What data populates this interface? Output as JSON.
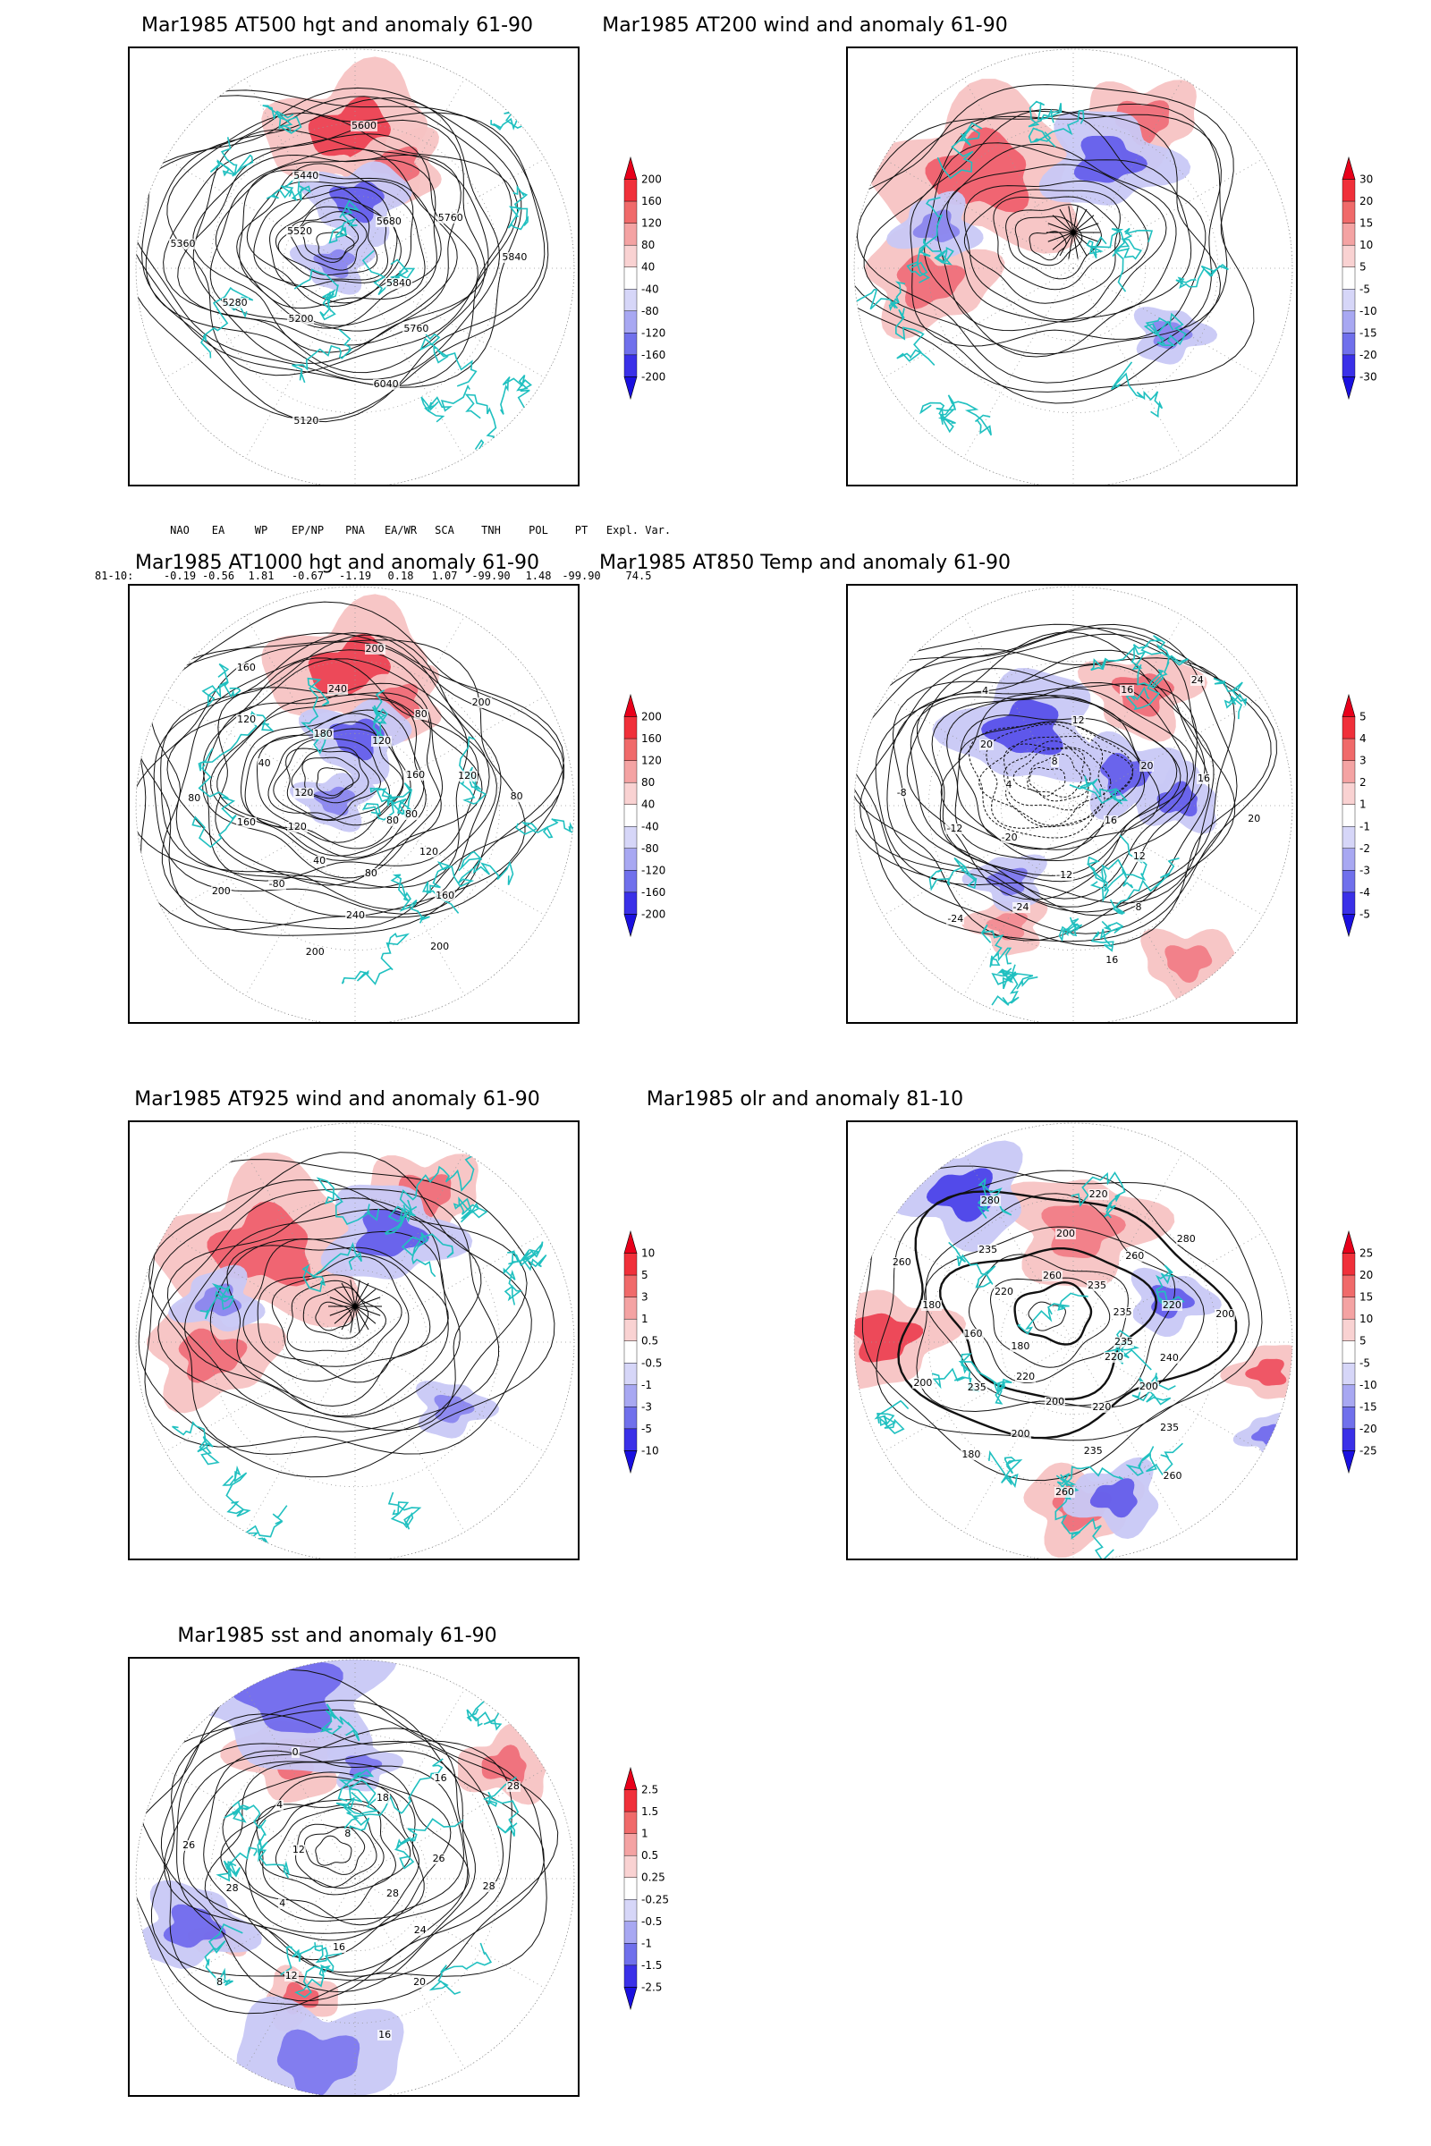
{
  "panels": [
    {
      "id": "p1",
      "title": "Mar1985 AT500 hgt and anomaly 61-90",
      "colorbar": [
        "200",
        "160",
        "120",
        "80",
        "40",
        "-40",
        "-80",
        "-120",
        "-160",
        "-200"
      ],
      "contour_labels": [
        "5840",
        "5760",
        "6040",
        "5120",
        "5200",
        "5280",
        "5360",
        "5520",
        "5440",
        "5600",
        "5680",
        "5760",
        "5840"
      ],
      "style": "hgt"
    },
    {
      "id": "p2",
      "title": "Mar1985 AT200 wind and anomaly 61-90",
      "colorbar": [
        "30",
        "20",
        "15",
        "10",
        "5",
        "-5",
        "-10",
        "-15",
        "-20",
        "-30"
      ],
      "contour_labels": [],
      "style": "wind"
    },
    {
      "id": "p3",
      "title": "Mar1985 AT1000 hgt and anomaly 61-90",
      "colorbar": [
        "200",
        "160",
        "120",
        "80",
        "40",
        "-40",
        "-80",
        "-120",
        "-160",
        "-200"
      ],
      "contour_labels": [
        "80",
        "120",
        "160",
        "200",
        "80",
        "240",
        "200",
        "40",
        "-80",
        "200",
        "120",
        "160",
        "80",
        "120",
        "40",
        "120",
        "160",
        "180",
        "240",
        "200",
        "120",
        "80",
        "200",
        "160",
        "120",
        "80",
        "80"
      ],
      "style": "hgt"
    },
    {
      "id": "p4",
      "title": "Mar1985 AT850 Temp and anomaly 61-90",
      "colorbar": [
        "5",
        "4",
        "3",
        "2",
        "1",
        "-1",
        "-2",
        "-3",
        "-4",
        "-5"
      ],
      "contour_labels": [
        "16",
        "12",
        "8",
        "16",
        "-12",
        "-24",
        "-24",
        "-20",
        "-12",
        "-8",
        "4",
        "20",
        "4",
        "8",
        "12",
        "16",
        "24",
        "20",
        "16",
        "20"
      ],
      "style": "temp"
    },
    {
      "id": "p5",
      "title": "Mar1985 AT925 wind and anomaly 61-90",
      "colorbar": [
        "10",
        "5",
        "3",
        "1",
        "0.5",
        "-0.5",
        "-1",
        "-3",
        "-5",
        "-10"
      ],
      "contour_labels": [],
      "style": "wind"
    },
    {
      "id": "p6",
      "title": "Mar1985 olr and anomaly 81-10",
      "colorbar": [
        "25",
        "20",
        "15",
        "10",
        "5",
        "-5",
        "-10",
        "-15",
        "-20",
        "-25"
      ],
      "contour_labels": [
        "220",
        "200",
        "235",
        "260",
        "220",
        "235",
        "260",
        "200",
        "200",
        "180",
        "220",
        "235",
        "200",
        "180",
        "160",
        "180",
        "260",
        "220",
        "235",
        "280",
        "260",
        "200",
        "220",
        "235",
        "260",
        "280",
        "235",
        "220",
        "200",
        "235",
        "240"
      ],
      "style": "olr"
    },
    {
      "id": "p7",
      "title": "Mar1985 sst and anomaly 61-90",
      "colorbar": [
        "2.5",
        "1.5",
        "1",
        "0.5",
        "0.25",
        "-0.25",
        "-0.5",
        "-1",
        "-1.5",
        "-2.5"
      ],
      "contour_labels": [
        "28",
        "24",
        "20",
        "16",
        "16",
        "12",
        "8",
        "4",
        "28",
        "26",
        "12",
        "4",
        "0",
        "8",
        "18",
        "16",
        "28",
        "26",
        "28"
      ],
      "style": "sst"
    }
  ],
  "index_table": {
    "headers": [
      "NAO",
      "EA",
      "WP",
      "EP/NP",
      "PNA",
      "EA/WR",
      "SCA",
      "TNH",
      "POL",
      "PT",
      "Expl. Var."
    ],
    "row_label": "81-10:",
    "values": [
      "-0.19",
      "-0.56",
      "1.81",
      "-0.67",
      "-1.19",
      "0.18",
      "1.07",
      "-99.90",
      "1.48",
      "-99.90",
      "74.5"
    ]
  },
  "colors": {
    "red_strong": "#e8001a",
    "red_light": "#f7c3c3",
    "blue_strong": "#2a1fe6",
    "blue_light": "#c8c8f5",
    "coast": "#20c0c0"
  }
}
